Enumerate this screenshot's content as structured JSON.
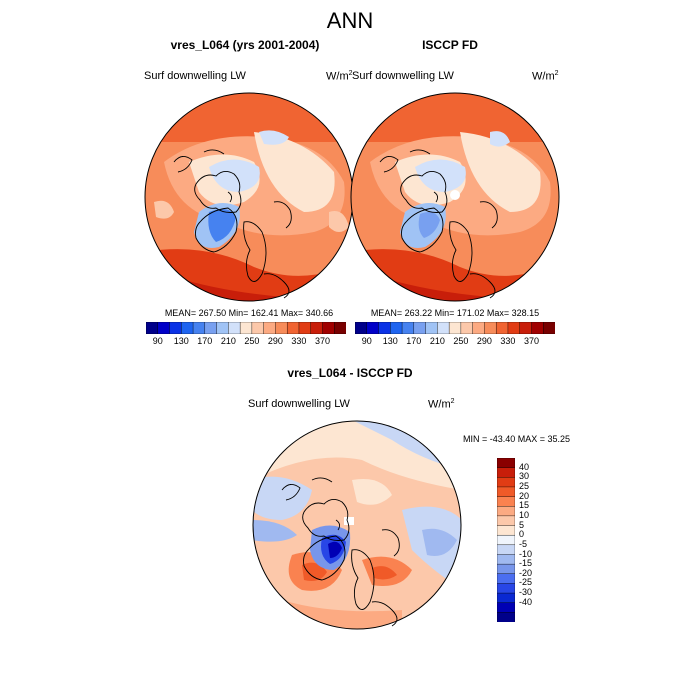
{
  "figure": {
    "title": "ANN"
  },
  "panels": [
    {
      "title": "vres_L064 (yrs 2001-2004)",
      "left_label": "Surf downwelling LW",
      "units_base": "W/m",
      "units_exp": "2",
      "stats": "MEAN= 267.50  Min= 162.41  Max= 340.66"
    },
    {
      "title": "ISCCP FD",
      "left_label": "Surf downwelling LW",
      "units_base": "W/m",
      "units_exp": "2",
      "stats": "MEAN= 263.22  Min= 171.02  Max= 328.15"
    },
    {
      "title": "vres_L064 - ISCCP FD",
      "left_label": "Surf downwelling LW",
      "units_base": "W/m",
      "units_exp": "2",
      "stats": "MIN = -43.40 MAX =  35.25"
    }
  ],
  "abs_colorbar": {
    "colors": [
      "#00008a",
      "#0000c8",
      "#0a32e6",
      "#1e64f0",
      "#4682f0",
      "#78a0f0",
      "#a0c3f5",
      "#d2e1fa",
      "#fde6d2",
      "#fcc8aa",
      "#fcaa82",
      "#f78c5a",
      "#f06432",
      "#e13c14",
      "#c81e0a",
      "#a00000",
      "#780000"
    ],
    "labels": [
      "90",
      "130",
      "170",
      "210",
      "250",
      "290",
      "330",
      "370"
    ]
  },
  "diff_colorbar": {
    "colors": [
      "#8a0000",
      "#c81e0a",
      "#e13c14",
      "#f05a28",
      "#fa8250",
      "#fcaa82",
      "#fcc8aa",
      "#fde6d2",
      "#f0f5fc",
      "#c8d7f5",
      "#a0b9f0",
      "#7896eb",
      "#4b6ef0",
      "#2846e6",
      "#0a28d2",
      "#0000b4",
      "#00008a"
    ],
    "labels": [
      "40",
      "30",
      "25",
      "20",
      "15",
      "10",
      "5",
      "0",
      "-5",
      "-10",
      "-15",
      "-20",
      "-25",
      "-30",
      "-40"
    ]
  },
  "chart_data": [
    {
      "type": "polar-map",
      "field": "Surf downwelling LW",
      "mean": 267.5,
      "min": 162.41,
      "max": 340.66
    },
    {
      "type": "polar-map",
      "field": "Surf downwelling LW",
      "mean": 263.22,
      "min": 171.02,
      "max": 328.15
    },
    {
      "type": "polar-map",
      "field": "Surf downwelling LW",
      "min": -43.4,
      "max": 35.25
    }
  ]
}
